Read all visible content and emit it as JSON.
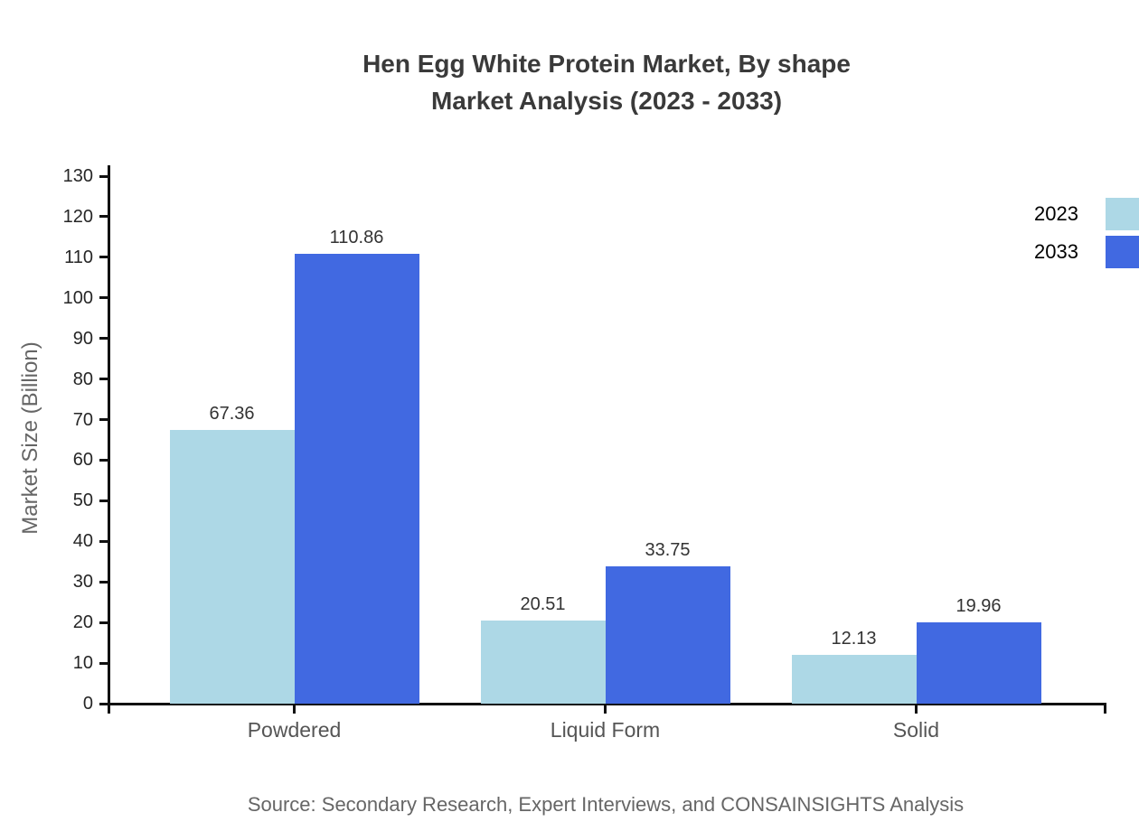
{
  "title": {
    "line1": "Hen Egg White Protein Market, By shape",
    "line2": "Market Analysis (2023 - 2033)"
  },
  "source": "Source: Secondary Research, Expert Interviews, and CONSAINSIGHTS Analysis",
  "chart_data": {
    "type": "bar",
    "title": "Hen Egg White Protein Market, By shape Market Analysis (2023 - 2033)",
    "categories": [
      "Powdered",
      "Liquid Form",
      "Solid"
    ],
    "series": [
      {
        "name": "2023",
        "color": "#add8e6",
        "values": [
          67.36,
          20.51,
          12.13
        ]
      },
      {
        "name": "2033",
        "color": "#4169e1",
        "values": [
          110.86,
          33.75,
          19.96
        ]
      }
    ],
    "value_labels": [
      [
        "67.36",
        "20.51",
        "12.13"
      ],
      [
        "110.86",
        "33.75",
        "19.96"
      ]
    ],
    "xlabel": "",
    "ylabel": "Market Size (Billion)",
    "ylim": [
      0,
      130
    ],
    "ytick_step": 10,
    "grid": false,
    "legend_position": "top-right",
    "value_label_decimals": 2
  }
}
